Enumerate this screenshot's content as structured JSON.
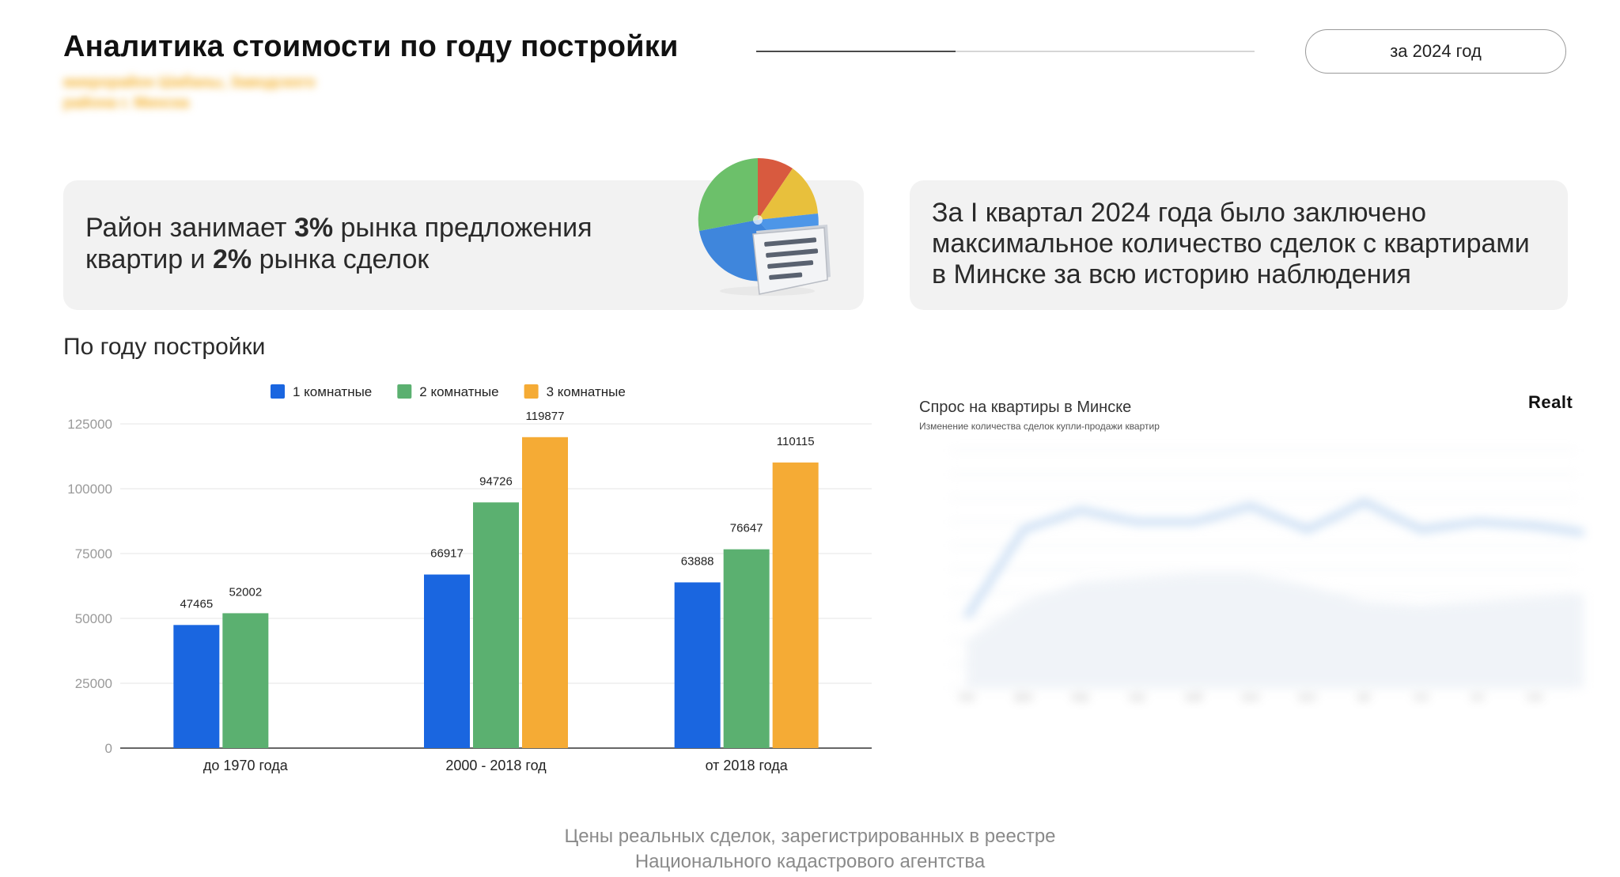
{
  "header": {
    "title": "Аналитика стоимости по году постройки",
    "subtitle": "микрорайон Шабаны, Заводского района г. Минска",
    "year_button": "за 2024 год",
    "progress": 0.4
  },
  "cards": {
    "left": {
      "parts": [
        {
          "text": "Район занимает ",
          "bold": false
        },
        {
          "text": "3%",
          "bold": true
        },
        {
          "text": " рынка предложения квартир и ",
          "bold": false
        },
        {
          "text": "2%",
          "bold": true
        },
        {
          "text": " рынка сделок",
          "bold": false
        }
      ],
      "illustration": "pie-chart-document-icon"
    },
    "right": {
      "text": "За I квартал 2024 года было заключено максимальное количество сделок с квартирами в Минске за всю историю наблюдения"
    }
  },
  "chart_section": {
    "heading": "По году постройки"
  },
  "chart_data": {
    "type": "bar",
    "categories": [
      "до 1970 года",
      "2000 - 2018 год",
      "от 2018 года"
    ],
    "series": [
      {
        "name": "1 комнатные",
        "color": "#1a66e0",
        "values": [
          47465,
          66917,
          63888
        ]
      },
      {
        "name": "2 комнатные",
        "color": "#5bb070",
        "values": [
          52002,
          94726,
          76647
        ]
      },
      {
        "name": "3 комнатные",
        "color": "#f5ab35",
        "values": [
          null,
          119877,
          110115
        ]
      }
    ],
    "yticks": [
      0,
      25000,
      50000,
      75000,
      100000,
      125000
    ],
    "ylim": [
      0,
      125000
    ],
    "legend": "top",
    "grid": true
  },
  "demand_panel": {
    "title": "Спрос на квартиры в Минске",
    "subtitle": "Изменение количества сделок купли-продажи квартир",
    "logo": "Realt",
    "months": [
      "янв",
      "фев",
      "мар",
      "апр",
      "май",
      "июн",
      "июл",
      "авг",
      "сен",
      "окт",
      "ноя",
      "дек"
    ]
  },
  "footer": {
    "line1": "Цены реальных сделок, зарегистрированных в реестре",
    "line2": "Национального кадастрового агентства"
  }
}
